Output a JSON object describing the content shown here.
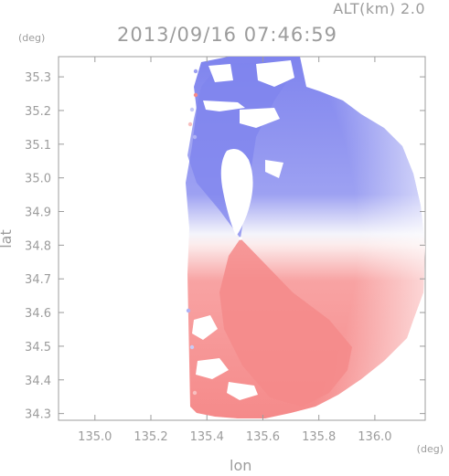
{
  "header": {
    "altitude_label": "ALT(km) 2.0",
    "datetime": "2013/09/16 07:46:59"
  },
  "chart_data": {
    "type": "heatmap",
    "title": "2013/09/16 07:46:59",
    "xlabel": "lon",
    "ylabel": "lat",
    "x_unit": "(deg)",
    "y_unit": "(deg)",
    "xlim": [
      134.87,
      136.18
    ],
    "ylim": [
      34.28,
      35.36
    ],
    "x_ticks": [
      "135.0",
      "135.2",
      "135.4",
      "135.6",
      "135.8",
      "136.0"
    ],
    "y_ticks": [
      "34.3",
      "34.4",
      "34.5",
      "34.6",
      "34.7",
      "34.8",
      "34.9",
      "35.0",
      "35.1",
      "35.2",
      "35.3"
    ],
    "x_tick_values": [
      135.0,
      135.2,
      135.4,
      135.6,
      135.8,
      136.0
    ],
    "y_tick_values": [
      34.3,
      34.4,
      34.5,
      34.6,
      34.7,
      34.8,
      34.9,
      35.0,
      35.1,
      35.2,
      35.3
    ],
    "radar_center": [
      135.52,
      34.82
    ],
    "colors": {
      "approaching": "#7f84ee",
      "receding": "#f58a8a",
      "neutral": "#ffffff",
      "axis": "#9c9c9c"
    }
  }
}
